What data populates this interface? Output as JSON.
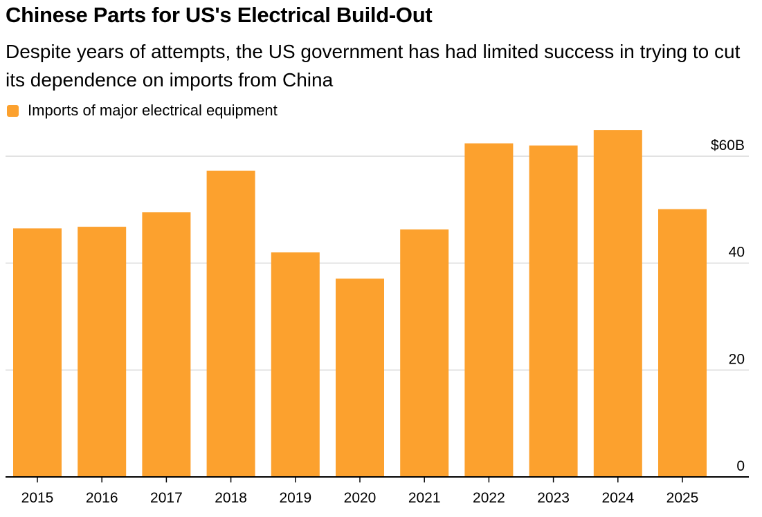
{
  "title": "Chinese Parts for US's Electrical Build-Out",
  "subtitle": "Despite years of attempts, the US government has had limited success in trying to cut its dependence on imports from China",
  "colors": {
    "bar": "#FCA12E",
    "grid": "#D9D9D9",
    "axis": "#000000"
  },
  "chart_data": {
    "type": "bar",
    "categories": [
      "2015",
      "2016",
      "2017",
      "2018",
      "2019",
      "2020",
      "2021",
      "2022",
      "2023",
      "2024",
      "2025"
    ],
    "series": [
      {
        "name": "Imports of major electrical equipment",
        "values": [
          46.5,
          46.8,
          49.5,
          57.3,
          42.0,
          37.1,
          46.3,
          62.4,
          62.0,
          64.9,
          50.1
        ]
      }
    ],
    "ylim": [
      0,
      66
    ],
    "yticks": [
      0,
      20,
      40,
      60
    ],
    "ytick_labels": [
      "0",
      "20",
      "40",
      "$60B"
    ],
    "ylabel": "",
    "xlabel": "",
    "y_axis_position": "right",
    "grid": true,
    "legend_position": "top-left"
  }
}
